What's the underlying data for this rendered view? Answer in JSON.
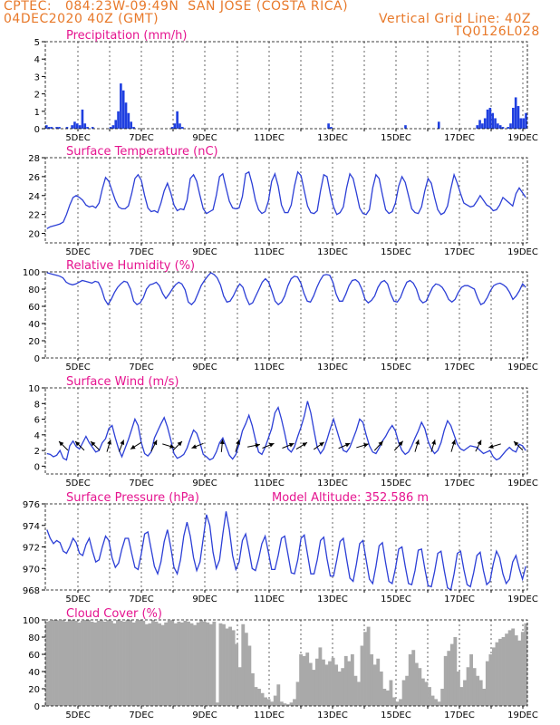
{
  "header": {
    "line1": "CPTEC:   084:23W-09:49N  SAN JOSE (COSTA RICA)",
    "line2": "04DEC2020 40Z (GMT)",
    "grid_note": "Vertical Grid Line: 40Z",
    "code": "TQ0126L028"
  },
  "colors": {
    "title": "#e5148f",
    "header": "#e8792a",
    "line": "#2c3fd6",
    "bar": "#1f3fe0",
    "cloud": "#a9a9a9"
  },
  "chart_data": [
    {
      "id": "precip",
      "type": "bar",
      "title": "Precipitation (mm/h)",
      "ylim": [
        0,
        5
      ],
      "yticks": [
        "0",
        "1",
        "2",
        "3",
        "4",
        "5"
      ],
      "x_ticks": [
        "5DEC",
        "7DEC",
        "9DEC",
        "11DEC",
        "13DEC",
        "15DEC",
        "17DEC",
        "19DEC"
      ],
      "values": [
        0.2,
        0.1,
        0.1,
        0.0,
        0.1,
        0.1,
        0.0,
        0.0,
        0.1,
        0.0,
        0.2,
        0.4,
        0.3,
        0.2,
        1.1,
        0.3,
        0.1,
        0.0,
        0.1,
        0.0,
        0.0,
        0.0,
        0.0,
        0.0,
        0.0,
        0.1,
        0.2,
        0.5,
        1.0,
        2.6,
        2.2,
        1.5,
        0.9,
        0.4,
        0.1,
        0.0,
        0.0,
        0.0,
        0.0,
        0.0,
        0.0,
        0.0,
        0.0,
        0.0,
        0.0,
        0.0,
        0.0,
        0.0,
        0.0,
        0.1,
        0.3,
        1.0,
        0.3,
        0.1,
        0.0,
        0.0,
        0.0,
        0.0,
        0.0,
        0.0,
        0.0,
        0.0,
        0.0,
        0.0,
        0.0,
        0.0,
        0.0,
        0.0,
        0.0,
        0.0,
        0.0,
        0.0,
        0.0,
        0.0,
        0.0,
        0.0,
        0.0,
        0.0,
        0.0,
        0.0,
        0.0,
        0.0,
        0.0,
        0.0,
        0.0,
        0.0,
        0.0,
        0.0,
        0.0,
        0.0,
        0.0,
        0.0,
        0.0,
        0.0,
        0.0,
        0.0,
        0.0,
        0.0,
        0.0,
        0.0,
        0.0,
        0.0,
        0.0,
        0.0,
        0.0,
        0.0,
        0.0,
        0.0,
        0.0,
        0.0,
        0.3,
        0.1,
        0.0,
        0.0,
        0.0,
        0.0,
        0.0,
        0.0,
        0.0,
        0.0,
        0.0,
        0.0,
        0.0,
        0.0,
        0.0,
        0.0,
        0.0,
        0.0,
        0.0,
        0.0,
        0.0,
        0.0,
        0.0,
        0.0,
        0.0,
        0.0,
        0.0,
        0.0,
        0.0,
        0.0,
        0.2,
        0.0,
        0.0,
        0.0,
        0.0,
        0.0,
        0.0,
        0.0,
        0.0,
        0.0,
        0.0,
        0.0,
        0.0,
        0.4,
        0.0,
        0.0,
        0.0,
        0.0,
        0.0,
        0.0,
        0.0,
        0.0,
        0.0,
        0.0,
        0.0,
        0.0,
        0.0,
        0.0,
        0.2,
        0.5,
        0.3,
        0.6,
        1.1,
        1.2,
        0.9,
        0.6,
        0.3,
        0.2,
        0.1,
        0.0,
        0.1,
        0.3,
        1.2,
        1.8,
        1.3,
        0.6,
        0.6,
        0.9
      ]
    },
    {
      "id": "temp",
      "type": "line",
      "title": "Surface Temperature (nC)",
      "ylim": [
        19,
        28
      ],
      "yticks": [
        "20",
        "22",
        "24",
        "26",
        "28"
      ],
      "x_ticks": [
        "5DEC",
        "7DEC",
        "9DEC",
        "11DEC",
        "13DEC",
        "15DEC",
        "17DEC",
        "19DEC"
      ],
      "values": [
        20.5,
        20.7,
        20.8,
        20.9,
        21.0,
        21.2,
        22.0,
        23.0,
        23.8,
        24.0,
        23.8,
        23.5,
        23.0,
        22.8,
        22.9,
        22.7,
        23.2,
        24.7,
        25.9,
        25.5,
        24.5,
        23.5,
        22.8,
        22.6,
        22.6,
        22.9,
        24.2,
        25.8,
        26.2,
        25.6,
        24.0,
        22.7,
        22.3,
        22.4,
        22.2,
        23.2,
        24.5,
        25.3,
        24.3,
        23.0,
        22.4,
        22.6,
        22.5,
        23.5,
        25.8,
        26.2,
        25.5,
        24.0,
        22.6,
        22.1,
        22.3,
        22.5,
        24.0,
        26.0,
        26.3,
        24.8,
        23.4,
        22.7,
        22.6,
        22.7,
        23.9,
        26.3,
        26.5,
        25.2,
        23.5,
        22.5,
        22.1,
        22.3,
        23.4,
        25.5,
        26.3,
        25.0,
        23.0,
        22.2,
        22.2,
        23.0,
        25.0,
        26.5,
        26.1,
        24.5,
        22.9,
        22.2,
        22.1,
        22.4,
        24.5,
        26.2,
        26.0,
        24.2,
        22.8,
        22.0,
        22.2,
        22.8,
        24.8,
        26.3,
        25.8,
        24.3,
        22.7,
        22.1,
        22.0,
        22.5,
        24.8,
        26.2,
        25.8,
        24.1,
        22.5,
        22.1,
        22.3,
        23.2,
        25.0,
        26.0,
        25.4,
        24.0,
        22.6,
        22.2,
        22.1,
        22.8,
        24.5,
        25.8,
        25.3,
        23.8,
        22.5,
        22.0,
        22.2,
        22.9,
        24.7,
        26.2,
        25.3,
        24.2,
        23.2,
        23.0,
        22.8,
        22.9,
        23.4,
        24.0,
        23.5,
        23.0,
        22.8,
        22.4,
        22.5,
        23.0,
        23.8,
        23.5,
        23.2,
        22.9,
        24.2,
        24.8,
        24.3,
        23.8
      ]
    },
    {
      "id": "rh",
      "type": "line",
      "title": "Relative Humidity (%)",
      "ylim": [
        0,
        100
      ],
      "yticks": [
        "0",
        "20",
        "40",
        "60",
        "80",
        "100"
      ],
      "x_ticks": [
        "5DEC",
        "7DEC",
        "9DEC",
        "11DEC",
        "13DEC",
        "15DEC",
        "17DEC",
        "19DEC"
      ],
      "values": [
        99,
        98,
        97,
        96,
        95,
        93,
        88,
        86,
        85,
        86,
        88,
        90,
        89,
        88,
        87,
        89,
        88,
        80,
        68,
        62,
        68,
        76,
        82,
        86,
        89,
        88,
        80,
        66,
        62,
        64,
        70,
        80,
        85,
        86,
        88,
        84,
        75,
        69,
        74,
        80,
        85,
        88,
        86,
        79,
        65,
        62,
        66,
        75,
        84,
        90,
        95,
        99,
        97,
        93,
        85,
        72,
        65,
        66,
        72,
        80,
        86,
        82,
        70,
        62,
        64,
        72,
        80,
        88,
        92,
        88,
        78,
        66,
        62,
        65,
        72,
        84,
        92,
        95,
        94,
        87,
        75,
        66,
        65,
        72,
        82,
        90,
        96,
        97,
        96,
        88,
        74,
        66,
        66,
        74,
        84,
        90,
        91,
        88,
        80,
        68,
        64,
        67,
        72,
        82,
        88,
        90,
        86,
        74,
        66,
        65,
        70,
        80,
        88,
        90,
        87,
        80,
        68,
        64,
        66,
        74,
        82,
        86,
        85,
        82,
        76,
        68,
        65,
        68,
        76,
        82,
        84,
        84,
        82,
        80,
        70,
        62,
        64,
        70,
        78,
        84,
        86,
        87,
        85,
        82,
        76,
        68,
        72,
        78,
        86,
        82
      ]
    },
    {
      "id": "wind",
      "type": "line",
      "title": "Surface Wind (m/s)",
      "ylim": [
        -1,
        10
      ],
      "yticks": [
        "0",
        "2",
        "4",
        "6",
        "8",
        "10"
      ],
      "x_ticks": [
        "5DEC",
        "7DEC",
        "9DEC",
        "11DEC",
        "13DEC",
        "15DEC",
        "17DEC",
        "19DEC"
      ],
      "values": [
        1.6,
        1.5,
        1.2,
        1.4,
        2.0,
        1.0,
        0.8,
        2.6,
        3.2,
        2.5,
        2.2,
        3.0,
        3.8,
        3.0,
        2.4,
        1.8,
        2.0,
        3.0,
        3.5,
        4.8,
        5.2,
        3.6,
        2.2,
        1.2,
        2.3,
        3.4,
        4.7,
        6.0,
        5.2,
        3.0,
        1.6,
        1.3,
        1.8,
        3.6,
        4.5,
        5.4,
        6.2,
        5.0,
        3.4,
        1.6,
        1.0,
        1.2,
        1.5,
        2.3,
        3.5,
        4.6,
        4.2,
        3.0,
        1.5,
        1.2,
        0.8,
        1.0,
        1.8,
        3.0,
        3.6,
        2.5,
        1.4,
        0.9,
        1.5,
        2.8,
        4.5,
        5.4,
        6.5,
        5.2,
        3.4,
        1.8,
        1.5,
        2.4,
        3.6,
        4.8,
        6.8,
        7.5,
        6.0,
        4.2,
        2.2,
        1.8,
        2.5,
        3.8,
        5.0,
        6.4,
        8.3,
        6.8,
        4.5,
        2.4,
        1.6,
        2.2,
        3.4,
        4.8,
        6.0,
        4.6,
        3.2,
        2.0,
        1.8,
        2.4,
        3.5,
        4.6,
        6.0,
        5.6,
        4.0,
        2.6,
        1.8,
        1.6,
        2.3,
        3.2,
        3.8,
        4.6,
        5.2,
        4.5,
        3.0,
        2.0,
        1.5,
        1.8,
        2.6,
        3.6,
        4.5,
        5.6,
        4.8,
        3.2,
        2.2,
        1.6,
        2.0,
        3.0,
        4.6,
        5.8,
        5.2,
        4.0,
        2.8,
        2.2,
        2.0,
        2.3,
        2.6,
        2.5,
        2.4,
        2.0,
        1.6,
        1.8,
        2.0,
        1.2,
        0.8,
        1.0,
        1.5,
        2.0,
        2.4,
        2.0,
        1.8,
        2.8,
        2.6,
        2.0
      ]
    },
    {
      "id": "pressure",
      "type": "line",
      "title": "Surface Pressure (hPa)",
      "annotation": "Model Altitude: 352.586 m",
      "ylim": [
        968,
        976
      ],
      "yticks": [
        "968",
        "970",
        "972",
        "974",
        "976"
      ],
      "x_ticks": [
        "5DEC",
        "7DEC",
        "9DEC",
        "11DEC",
        "13DEC",
        "15DEC",
        "17DEC",
        "19DEC"
      ],
      "values": [
        973.6,
        972.8,
        972.3,
        972.6,
        972.4,
        971.6,
        971.4,
        972.0,
        972.8,
        972.4,
        971.4,
        971.2,
        972.2,
        972.8,
        971.6,
        970.6,
        970.8,
        972.0,
        973.0,
        972.6,
        971.0,
        970.1,
        970.5,
        971.8,
        972.8,
        972.8,
        971.4,
        970.1,
        969.9,
        971.4,
        973.2,
        973.4,
        971.8,
        970.2,
        969.5,
        970.6,
        972.5,
        973.6,
        972.0,
        970.1,
        969.5,
        970.8,
        973.0,
        974.3,
        973.0,
        971.0,
        969.8,
        970.6,
        972.8,
        975.0,
        974.0,
        971.5,
        970.0,
        970.8,
        973.2,
        975.3,
        973.6,
        971.2,
        969.9,
        970.6,
        972.6,
        973.2,
        971.7,
        970.0,
        969.8,
        970.9,
        972.3,
        973.0,
        971.5,
        969.9,
        969.9,
        971.2,
        972.8,
        973.0,
        971.3,
        969.6,
        969.5,
        970.8,
        972.8,
        973.1,
        971.3,
        969.5,
        969.5,
        970.8,
        972.6,
        972.9,
        970.9,
        969.3,
        969.3,
        970.8,
        972.5,
        972.8,
        970.9,
        969.1,
        968.8,
        970.4,
        972.3,
        972.6,
        970.8,
        969.0,
        968.6,
        970.2,
        972.1,
        972.4,
        970.5,
        968.8,
        968.6,
        970.0,
        971.8,
        972.0,
        970.2,
        968.6,
        968.5,
        969.8,
        971.7,
        971.8,
        970.0,
        968.4,
        968.3,
        969.7,
        971.4,
        971.6,
        969.8,
        968.2,
        968.0,
        969.5,
        971.4,
        971.6,
        969.9,
        968.5,
        968.3,
        969.6,
        971.2,
        971.5,
        969.8,
        968.5,
        968.8,
        970.4,
        971.6,
        971.0,
        969.5,
        968.6,
        969.0,
        970.6,
        971.2,
        970.0,
        969.0,
        970.2
      ]
    },
    {
      "id": "cloud",
      "type": "area",
      "title": "Cloud Cover (%)",
      "ylim": [
        0,
        100
      ],
      "yticks": [
        "0",
        "20",
        "40",
        "60",
        "80",
        "100"
      ],
      "x_ticks": [
        "5DEC",
        "7DEC",
        "9DEC",
        "11DEC",
        "13DEC",
        "15DEC",
        "17DEC",
        "19DEC"
      ],
      "values": [
        98,
        99,
        100,
        100,
        99,
        100,
        98,
        100,
        100,
        99,
        97,
        99,
        100,
        100,
        98,
        97,
        99,
        100,
        98,
        100,
        99,
        96,
        100,
        99,
        98,
        100,
        100,
        97,
        99,
        100,
        99,
        95,
        96,
        100,
        98,
        96,
        94,
        97,
        99,
        100,
        96,
        98,
        97,
        99,
        98,
        96,
        94,
        97,
        100,
        98,
        97,
        95,
        98,
        4,
        96,
        95,
        90,
        92,
        88,
        72,
        45,
        95,
        85,
        70,
        38,
        22,
        20,
        15,
        10,
        8,
        5,
        12,
        25,
        5,
        3,
        2,
        4,
        8,
        28,
        60,
        58,
        62,
        50,
        42,
        55,
        68,
        54,
        48,
        52,
        56,
        48,
        40,
        44,
        58,
        52,
        60,
        35,
        28,
        70,
        86,
        92,
        60,
        48,
        55,
        40,
        20,
        18,
        30,
        10,
        5,
        8,
        30,
        35,
        60,
        65,
        50,
        44,
        32,
        28,
        22,
        12,
        8,
        5,
        20,
        58,
        64,
        72,
        80,
        40,
        22,
        30,
        45,
        60,
        44,
        35,
        30,
        20,
        52,
        60,
        68,
        74,
        78,
        80,
        84,
        88,
        90,
        82,
        76,
        86,
        96
      ]
    }
  ]
}
